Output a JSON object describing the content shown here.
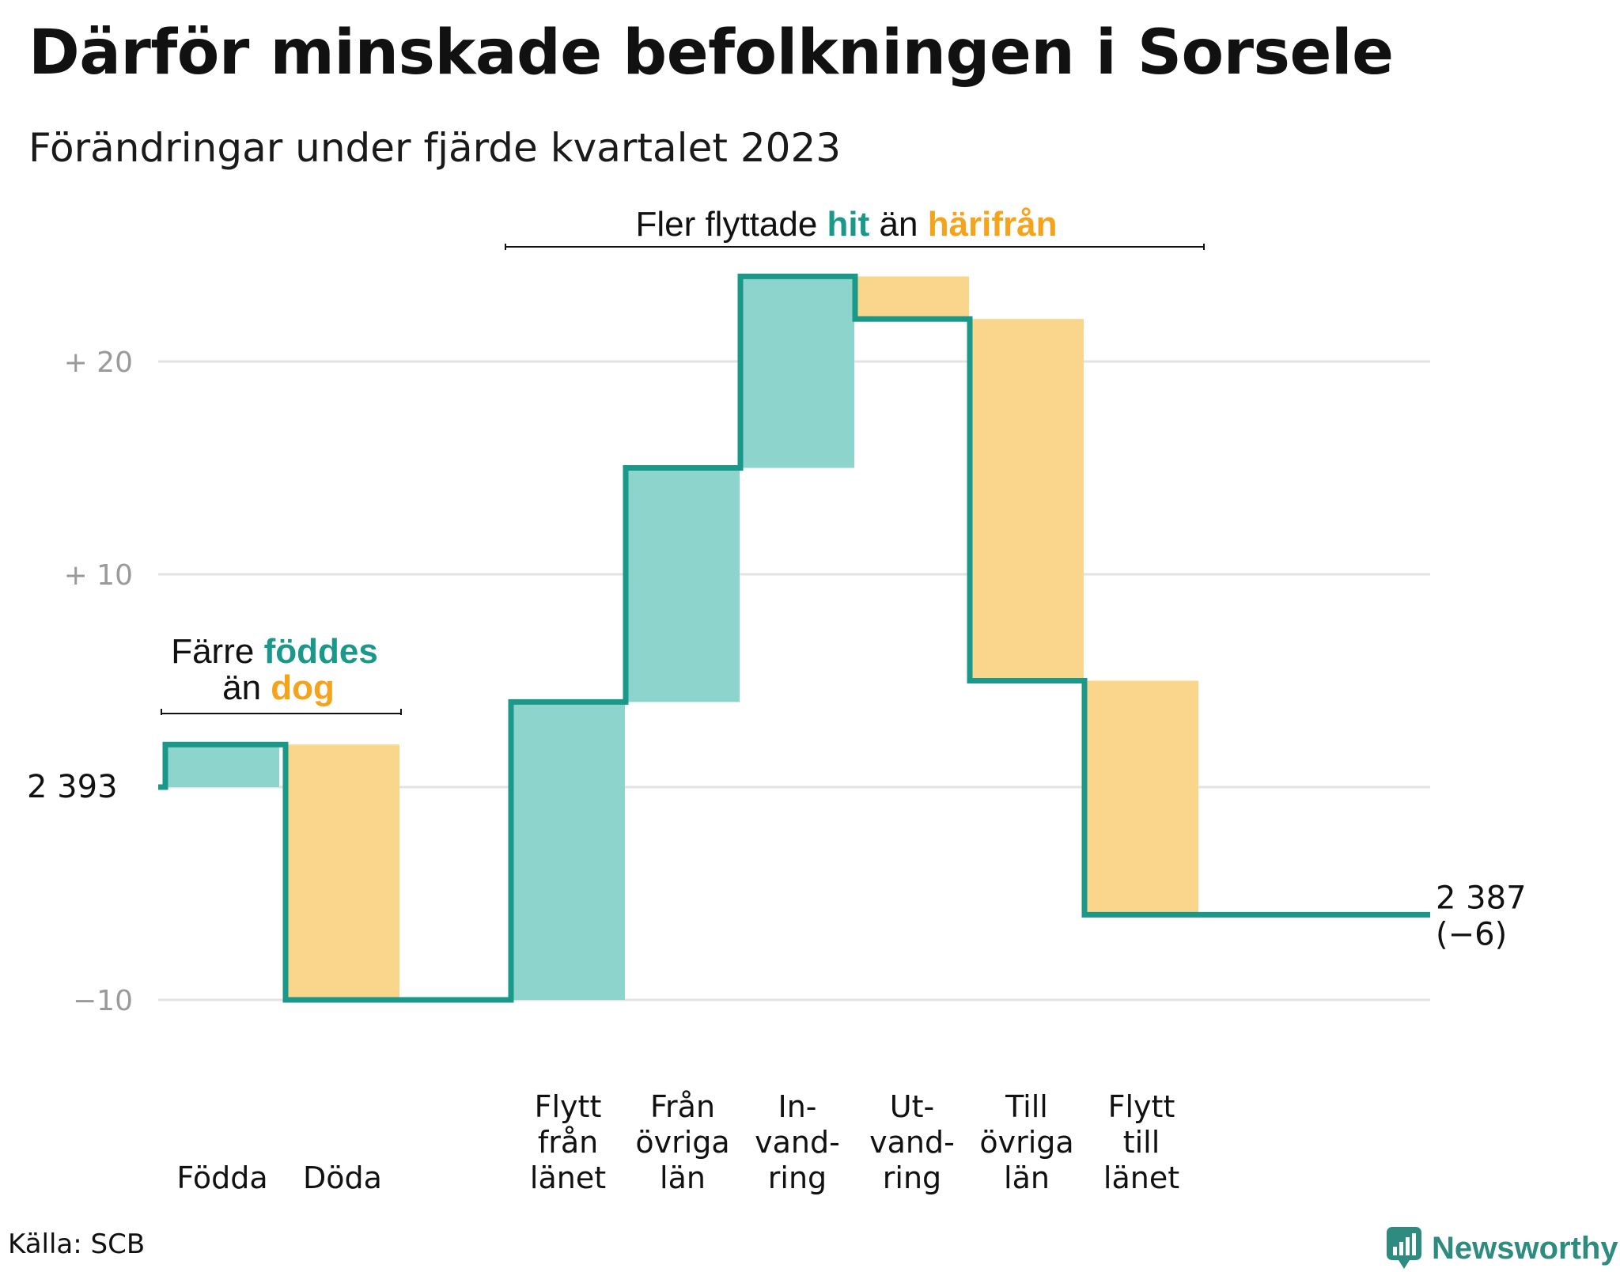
{
  "title": "Därför minskade befolkningen i Sorsele",
  "subtitle": "Förändringar under fjärde kvartalet 2023",
  "source": "Källa: SCB",
  "brand": "Newsworthy",
  "colors": {
    "increase_fill": "#8dd5cc",
    "decrease_fill": "#fad68c",
    "line": "#1a998a",
    "grid": "#e3e3e3",
    "teal_text": "#1a998a",
    "orange_text": "#f5a31a"
  },
  "chart_data": {
    "type": "bar",
    "subtype": "waterfall",
    "start_value": 2393,
    "start_label": "2  393",
    "end_value": 2387,
    "end_label": "2 387",
    "end_change_label": "(−6)",
    "ylim": [
      -10,
      24
    ],
    "ticks": [
      {
        "value": 20,
        "label": "+  20"
      },
      {
        "value": 10,
        "label": "+  10"
      },
      {
        "value": 0,
        "label": ""
      },
      {
        "value": -10,
        "label": "−10"
      }
    ],
    "categories": [
      {
        "lines": [
          "Födda"
        ],
        "value": 2
      },
      {
        "lines": [
          "Döda"
        ],
        "value": -12
      },
      {
        "lines": [
          "Flytt",
          "från",
          "länet"
        ],
        "value": 14
      },
      {
        "lines": [
          "Från",
          "övriga",
          "län"
        ],
        "value": 11
      },
      {
        "lines": [
          "In-",
          "vand-",
          "ring"
        ],
        "value": 9
      },
      {
        "lines": [
          "Ut-",
          "vand-",
          "ring"
        ],
        "value": -2
      },
      {
        "lines": [
          "Till",
          "övriga",
          "län"
        ],
        "value": -17
      },
      {
        "lines": [
          "Flytt",
          "till",
          "länet"
        ],
        "value": -11
      }
    ],
    "annotations": {
      "natural": {
        "line1_prefix": "Färre ",
        "line1_bold": "föddes",
        "line2_prefix": "än ",
        "line2_bold": "dog"
      },
      "migration": {
        "prefix": "Fler flyttade ",
        "bold1": "hit",
        "middle": " än ",
        "bold2": "härifrån"
      }
    }
  }
}
